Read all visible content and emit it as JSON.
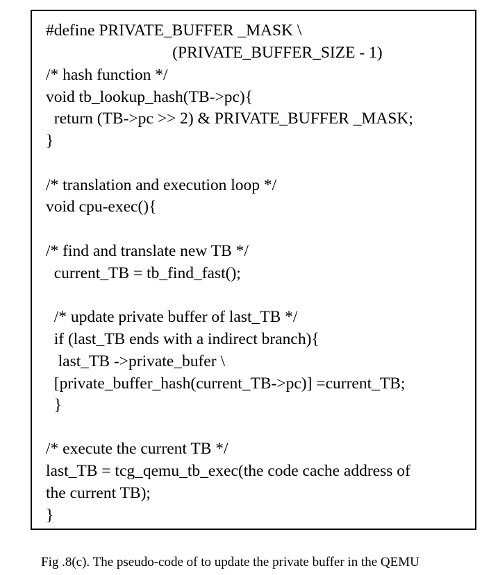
{
  "code_lines": [
    "#define PRIVATE_BUFFER _MASK \\",
    "                               (PRIVATE_BUFFER_SIZE - 1)",
    "/* hash function */",
    "void tb_lookup_hash(TB->pc){",
    "  return (TB->pc >> 2) & PRIVATE_BUFFER _MASK;",
    "}",
    "/* translation and execution loop */",
    "void cpu-exec(){",
    "/* find and translate new TB */",
    "  current_TB = tb_find_fast();",
    "  /* update private buffer of last_TB */",
    "  if (last_TB ends with a indirect branch){",
    "   last_TB ->private_bufer \\",
    "  [private_buffer_hash(current_TB->pc)] =current_TB;",
    "  }",
    "/* execute the current TB */",
    "last_TB = tcg_qemu_tb_exec(the code cache address of",
    "the current TB);",
    "}"
  ],
  "caption": "Fig .8(c). The pseudo-code of to update the private buffer in the QEMU"
}
